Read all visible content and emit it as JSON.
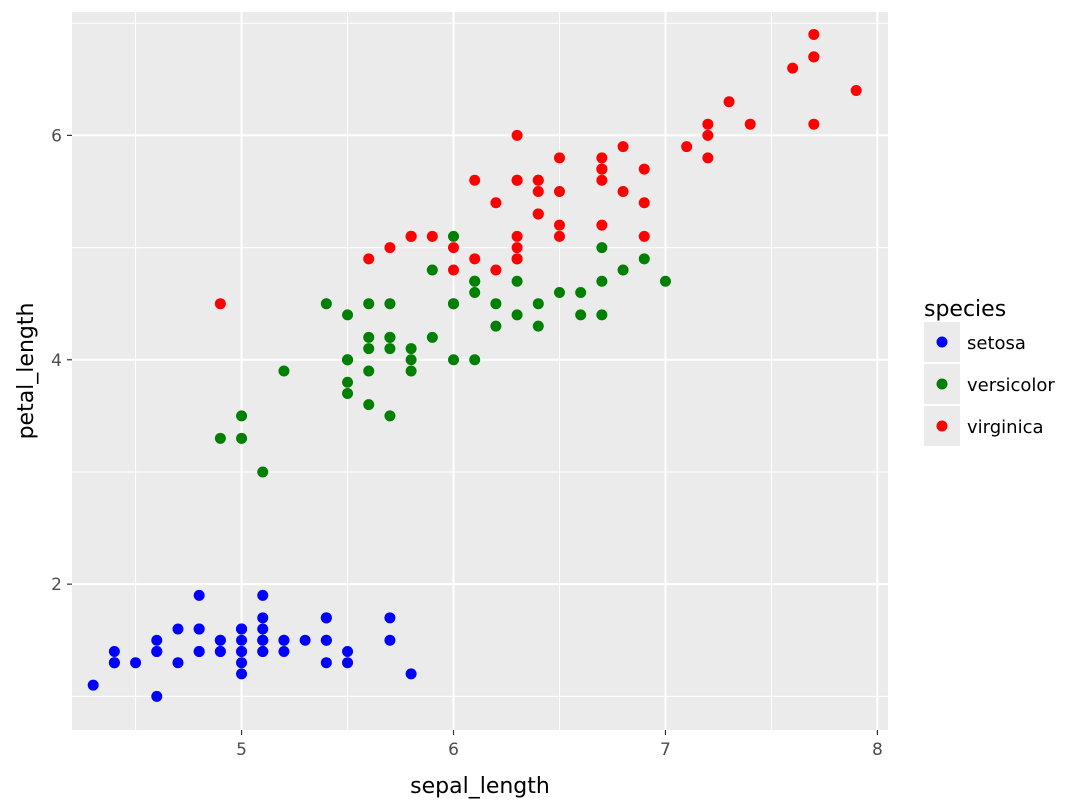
{
  "chart_data": {
    "type": "scatter",
    "xlabel": "sepal_length",
    "ylabel": "petal_length",
    "xlim": [
      4.2,
      8.05
    ],
    "ylim": [
      0.7,
      7.1
    ],
    "x_ticks": [
      5,
      6,
      7,
      8
    ],
    "y_ticks": [
      2,
      4,
      6
    ],
    "grid": true,
    "legend": {
      "title": "species",
      "placement": "right"
    },
    "series": [
      {
        "name": "setosa",
        "color": "#0000ff",
        "points": [
          [
            5.1,
            1.4
          ],
          [
            4.9,
            1.4
          ],
          [
            4.7,
            1.3
          ],
          [
            4.6,
            1.5
          ],
          [
            5.0,
            1.4
          ],
          [
            5.4,
            1.7
          ],
          [
            4.6,
            1.4
          ],
          [
            5.0,
            1.5
          ],
          [
            4.4,
            1.4
          ],
          [
            4.9,
            1.5
          ],
          [
            5.4,
            1.5
          ],
          [
            4.8,
            1.6
          ],
          [
            4.8,
            1.4
          ],
          [
            4.3,
            1.1
          ],
          [
            5.8,
            1.2
          ],
          [
            5.7,
            1.5
          ],
          [
            5.4,
            1.3
          ],
          [
            5.1,
            1.4
          ],
          [
            5.7,
            1.7
          ],
          [
            5.1,
            1.5
          ],
          [
            5.4,
            1.7
          ],
          [
            5.1,
            1.5
          ],
          [
            4.6,
            1.0
          ],
          [
            5.1,
            1.7
          ],
          [
            4.8,
            1.9
          ],
          [
            5.0,
            1.6
          ],
          [
            5.0,
            1.6
          ],
          [
            5.2,
            1.5
          ],
          [
            5.2,
            1.4
          ],
          [
            4.7,
            1.6
          ],
          [
            4.8,
            1.6
          ],
          [
            5.4,
            1.5
          ],
          [
            5.2,
            1.5
          ],
          [
            5.5,
            1.4
          ],
          [
            4.9,
            1.5
          ],
          [
            5.0,
            1.2
          ],
          [
            5.5,
            1.3
          ],
          [
            4.9,
            1.4
          ],
          [
            4.4,
            1.3
          ],
          [
            5.1,
            1.5
          ],
          [
            5.0,
            1.3
          ],
          [
            4.5,
            1.3
          ],
          [
            4.4,
            1.3
          ],
          [
            5.0,
            1.6
          ],
          [
            5.1,
            1.9
          ],
          [
            4.8,
            1.4
          ],
          [
            5.1,
            1.6
          ],
          [
            4.6,
            1.4
          ],
          [
            5.3,
            1.5
          ],
          [
            5.0,
            1.4
          ]
        ]
      },
      {
        "name": "versicolor",
        "color": "#008000",
        "points": [
          [
            7.0,
            4.7
          ],
          [
            6.4,
            4.5
          ],
          [
            6.9,
            4.9
          ],
          [
            5.5,
            4.0
          ],
          [
            6.5,
            4.6
          ],
          [
            5.7,
            4.5
          ],
          [
            6.3,
            4.7
          ],
          [
            4.9,
            3.3
          ],
          [
            6.6,
            4.6
          ],
          [
            5.2,
            3.9
          ],
          [
            5.0,
            3.5
          ],
          [
            5.9,
            4.2
          ],
          [
            6.0,
            4.0
          ],
          [
            6.1,
            4.7
          ],
          [
            5.6,
            3.6
          ],
          [
            6.7,
            4.4
          ],
          [
            5.6,
            4.5
          ],
          [
            5.8,
            4.1
          ],
          [
            6.2,
            4.5
          ],
          [
            5.6,
            3.9
          ],
          [
            5.9,
            4.8
          ],
          [
            6.1,
            4.0
          ],
          [
            6.3,
            4.9
          ],
          [
            6.1,
            4.7
          ],
          [
            6.4,
            4.3
          ],
          [
            6.6,
            4.4
          ],
          [
            6.8,
            4.8
          ],
          [
            6.7,
            5.0
          ],
          [
            6.0,
            4.5
          ],
          [
            5.7,
            3.5
          ],
          [
            5.5,
            3.8
          ],
          [
            5.5,
            3.7
          ],
          [
            5.8,
            3.9
          ],
          [
            6.0,
            5.1
          ],
          [
            5.4,
            4.5
          ],
          [
            6.0,
            4.5
          ],
          [
            6.7,
            4.7
          ],
          [
            6.3,
            4.4
          ],
          [
            5.6,
            4.1
          ],
          [
            5.5,
            4.0
          ],
          [
            5.5,
            4.4
          ],
          [
            6.1,
            4.6
          ],
          [
            5.8,
            4.0
          ],
          [
            5.0,
            3.3
          ],
          [
            5.6,
            4.2
          ],
          [
            5.7,
            4.2
          ],
          [
            5.7,
            4.2
          ],
          [
            6.2,
            4.3
          ],
          [
            5.1,
            3.0
          ],
          [
            5.7,
            4.1
          ]
        ]
      },
      {
        "name": "virginica",
        "color": "#ff0000",
        "points": [
          [
            6.3,
            6.0
          ],
          [
            5.8,
            5.1
          ],
          [
            7.1,
            5.9
          ],
          [
            6.3,
            5.6
          ],
          [
            6.5,
            5.8
          ],
          [
            7.6,
            6.6
          ],
          [
            4.9,
            4.5
          ],
          [
            7.3,
            6.3
          ],
          [
            6.7,
            5.8
          ],
          [
            7.2,
            6.1
          ],
          [
            6.5,
            5.1
          ],
          [
            6.4,
            5.3
          ],
          [
            6.8,
            5.5
          ],
          [
            5.7,
            5.0
          ],
          [
            5.8,
            5.1
          ],
          [
            6.4,
            5.3
          ],
          [
            6.5,
            5.5
          ],
          [
            7.7,
            6.7
          ],
          [
            7.7,
            6.9
          ],
          [
            6.0,
            5.0
          ],
          [
            6.9,
            5.7
          ],
          [
            5.6,
            4.9
          ],
          [
            7.7,
            6.7
          ],
          [
            6.3,
            4.9
          ],
          [
            6.7,
            5.7
          ],
          [
            7.2,
            6.0
          ],
          [
            6.2,
            4.8
          ],
          [
            6.1,
            4.9
          ],
          [
            6.4,
            5.6
          ],
          [
            7.2,
            5.8
          ],
          [
            7.4,
            6.1
          ],
          [
            7.9,
            6.4
          ],
          [
            6.4,
            5.6
          ],
          [
            6.3,
            5.1
          ],
          [
            6.1,
            5.6
          ],
          [
            7.7,
            6.1
          ],
          [
            6.3,
            5.6
          ],
          [
            6.4,
            5.5
          ],
          [
            6.0,
            4.8
          ],
          [
            6.9,
            5.4
          ],
          [
            6.7,
            5.6
          ],
          [
            6.9,
            5.1
          ],
          [
            5.8,
            5.1
          ],
          [
            6.8,
            5.9
          ],
          [
            6.7,
            5.7
          ],
          [
            6.7,
            5.2
          ],
          [
            6.3,
            5.0
          ],
          [
            6.5,
            5.2
          ],
          [
            6.2,
            5.4
          ],
          [
            5.9,
            5.1
          ]
        ]
      }
    ]
  }
}
